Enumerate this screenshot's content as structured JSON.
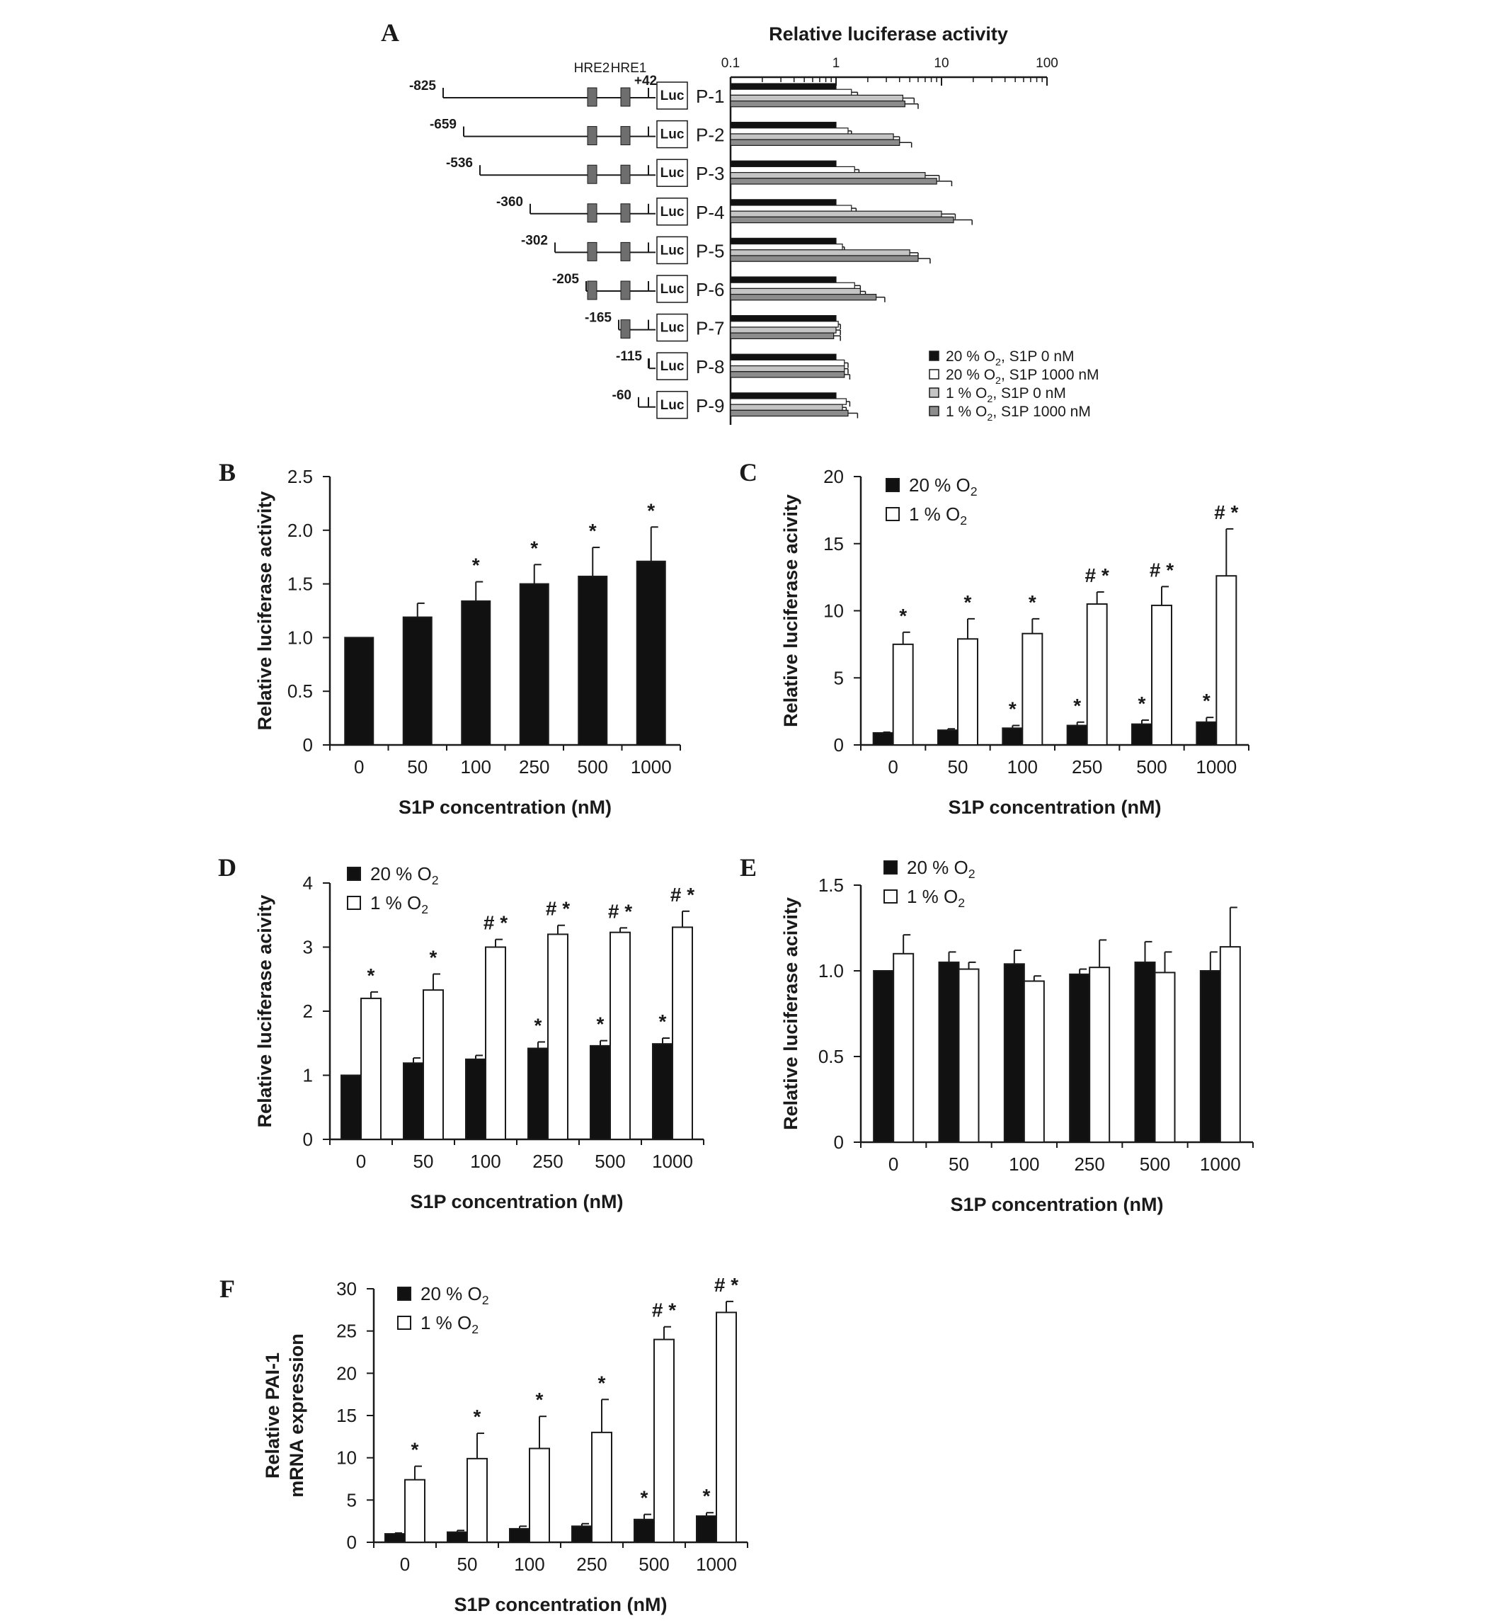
{
  "colors": {
    "black": "#111111",
    "white": "#ffffff",
    "light_gray": "#c4c4c4",
    "dark_gray": "#8c8c8c",
    "axis": "#1a1a1a"
  },
  "panel_letters": [
    "A",
    "B",
    "C",
    "D",
    "E",
    "F"
  ],
  "chart_data": [
    {
      "panel": "A",
      "type": "bar",
      "orientation": "horizontal",
      "scale": "log",
      "xlabel": "Relative luciferase activity",
      "xlim": [
        0.1,
        100
      ],
      "ticks": [
        "0.1",
        "1",
        "10",
        "100"
      ],
      "categories": [
        "P-1",
        "P-2",
        "P-3",
        "P-4",
        "P-5",
        "P-6",
        "P-7",
        "P-8",
        "P-9"
      ],
      "series": [
        {
          "name": "20 % O2, S1P 0 nM",
          "color": "black",
          "values": [
            1.0,
            1.0,
            1.0,
            1.0,
            1.0,
            1.0,
            1.0,
            1.0,
            1.0
          ],
          "errors": [
            0,
            0,
            0,
            0,
            0,
            0,
            0,
            0,
            0
          ]
        },
        {
          "name": "20 % O2, S1P 1000 nM",
          "color": "white",
          "values": [
            1.4,
            1.3,
            1.5,
            1.4,
            1.15,
            1.5,
            1.05,
            1.2,
            1.25
          ],
          "errors": [
            0.2,
            0.1,
            0.15,
            0.15,
            0.05,
            0.2,
            0.05,
            0.1,
            0.1
          ]
        },
        {
          "name": "1 % O2, S1P 0 nM",
          "color": "light_gray",
          "values": [
            4.3,
            3.5,
            7.0,
            10.0,
            5.0,
            1.7,
            1.0,
            1.2,
            1.15
          ],
          "errors": [
            1.2,
            0.5,
            2.5,
            3.5,
            1.0,
            0.2,
            0.1,
            0.1,
            0.1
          ]
        },
        {
          "name": "1 % O2, S1P 1000 nM",
          "color": "dark_gray",
          "values": [
            4.5,
            4.0,
            9.0,
            13.0,
            6.0,
            2.4,
            0.95,
            1.2,
            1.3
          ],
          "errors": [
            1.5,
            1.2,
            3.5,
            6.5,
            1.8,
            0.5,
            0.15,
            0.15,
            0.3
          ]
        }
      ],
      "construct": {
        "hre_labels": [
          "HRE2",
          "HRE1"
        ],
        "end_label": "+42",
        "reporter": "Luc",
        "starts": [
          "-825",
          "-659",
          "-536",
          "-360",
          "-302",
          "-205",
          "-165",
          "-115",
          "-60"
        ],
        "hre_counts": [
          2,
          2,
          2,
          2,
          2,
          2,
          1,
          0,
          0
        ]
      }
    },
    {
      "panel": "B",
      "type": "bar",
      "xlabel": "S1P concentration (nM)",
      "ylabel": "Relative luciferase activity",
      "categories": [
        "0",
        "50",
        "100",
        "250",
        "500",
        "1000"
      ],
      "ylim": [
        0,
        2.5
      ],
      "yticks": [
        "0",
        "0.5",
        "1.0",
        "1.5",
        "2.0",
        "2.5"
      ],
      "series": [
        {
          "name": "",
          "color": "black",
          "values": [
            1.0,
            1.19,
            1.34,
            1.5,
            1.57,
            1.71
          ],
          "errors": [
            0,
            0.13,
            0.18,
            0.18,
            0.27,
            0.32
          ],
          "marks": [
            "",
            "",
            "*",
            "*",
            "*",
            "*"
          ]
        }
      ]
    },
    {
      "panel": "C",
      "type": "bar",
      "xlabel": "S1P concentration (nM)",
      "ylabel": "Relative luciferase acivity",
      "categories": [
        "0",
        "50",
        "100",
        "250",
        "500",
        "1000"
      ],
      "ylim": [
        0,
        20
      ],
      "yticks": [
        "0",
        "5",
        "10",
        "15",
        "20"
      ],
      "legend": [
        "20 % O2",
        "1 % O2"
      ],
      "series": [
        {
          "name": "20 % O2",
          "color": "black",
          "values": [
            0.9,
            1.1,
            1.25,
            1.45,
            1.55,
            1.7
          ],
          "errors": [
            0.05,
            0.1,
            0.2,
            0.25,
            0.3,
            0.35
          ],
          "marks": [
            "",
            "",
            "*",
            "*",
            "*",
            "*"
          ]
        },
        {
          "name": "1 % O2",
          "color": "white",
          "values": [
            7.5,
            7.9,
            8.3,
            10.5,
            10.4,
            12.6
          ],
          "errors": [
            0.9,
            1.5,
            1.1,
            0.9,
            1.4,
            3.5
          ],
          "marks": [
            "*",
            "*",
            "*",
            "#*",
            "#*",
            "#*"
          ]
        }
      ]
    },
    {
      "panel": "D",
      "type": "bar",
      "xlabel": "S1P concentration (nM)",
      "ylabel": "Relative luciferase acivity",
      "categories": [
        "0",
        "50",
        "100",
        "250",
        "500",
        "1000"
      ],
      "ylim": [
        0,
        4
      ],
      "yticks": [
        "0",
        "1",
        "2",
        "3",
        "4"
      ],
      "legend": [
        "20 % O2",
        "1 % O2"
      ],
      "series": [
        {
          "name": "20 % O2",
          "color": "black",
          "values": [
            1.0,
            1.19,
            1.25,
            1.42,
            1.46,
            1.49
          ],
          "errors": [
            0,
            0.08,
            0.06,
            0.1,
            0.08,
            0.09
          ],
          "marks": [
            "",
            "",
            "",
            "*",
            "*",
            "*"
          ]
        },
        {
          "name": "1 % O2",
          "color": "white",
          "values": [
            2.2,
            2.33,
            3.0,
            3.2,
            3.23,
            3.31
          ],
          "errors": [
            0.1,
            0.25,
            0.12,
            0.14,
            0.07,
            0.25
          ],
          "marks": [
            "*",
            "*",
            "#*",
            "#*",
            "#*",
            "#*"
          ]
        }
      ]
    },
    {
      "panel": "E",
      "type": "bar",
      "xlabel": "S1P concentration (nM)",
      "ylabel": "Relative luciferase acivity",
      "categories": [
        "0",
        "50",
        "100",
        "250",
        "500",
        "1000"
      ],
      "ylim": [
        0,
        1.5
      ],
      "yticks": [
        "0",
        "0.5",
        "1.0",
        "1.5"
      ],
      "legend": [
        "20 % O2",
        "1 % O2"
      ],
      "series": [
        {
          "name": "20 % O2",
          "color": "black",
          "values": [
            1.0,
            1.05,
            1.04,
            0.98,
            1.05,
            1.0
          ],
          "errors": [
            0,
            0.06,
            0.08,
            0.03,
            0.12,
            0.11
          ],
          "marks": [
            "",
            "",
            "",
            "",
            "",
            ""
          ]
        },
        {
          "name": "1 % O2",
          "color": "white",
          "values": [
            1.1,
            1.01,
            0.94,
            1.02,
            0.99,
            1.14
          ],
          "errors": [
            0.11,
            0.04,
            0.03,
            0.16,
            0.12,
            0.23
          ],
          "marks": [
            "",
            "",
            "",
            "",
            "",
            ""
          ]
        }
      ]
    },
    {
      "panel": "F",
      "type": "bar",
      "xlabel": "S1P concentration (nM)",
      "ylabel": [
        "Relative PAI-1",
        "mRNA expression"
      ],
      "categories": [
        "0",
        "50",
        "100",
        "250",
        "500",
        "1000"
      ],
      "ylim": [
        0,
        30
      ],
      "yticks": [
        "0",
        "5",
        "10",
        "15",
        "20",
        "25",
        "30"
      ],
      "legend": [
        "20 % O2",
        "1 % O2"
      ],
      "series": [
        {
          "name": "20 % O2",
          "color": "black",
          "values": [
            1.0,
            1.2,
            1.6,
            1.9,
            2.7,
            3.1
          ],
          "errors": [
            0.1,
            0.2,
            0.3,
            0.3,
            0.6,
            0.4
          ],
          "marks": [
            "",
            "",
            "",
            "",
            "*",
            "*"
          ]
        },
        {
          "name": "1 % O2",
          "color": "white",
          "values": [
            7.4,
            9.9,
            11.1,
            13.0,
            24.0,
            27.2
          ],
          "errors": [
            1.6,
            3.0,
            3.8,
            3.9,
            1.5,
            1.3
          ],
          "marks": [
            "*",
            "*",
            "*",
            "*",
            "#*",
            "#*"
          ]
        }
      ]
    }
  ]
}
